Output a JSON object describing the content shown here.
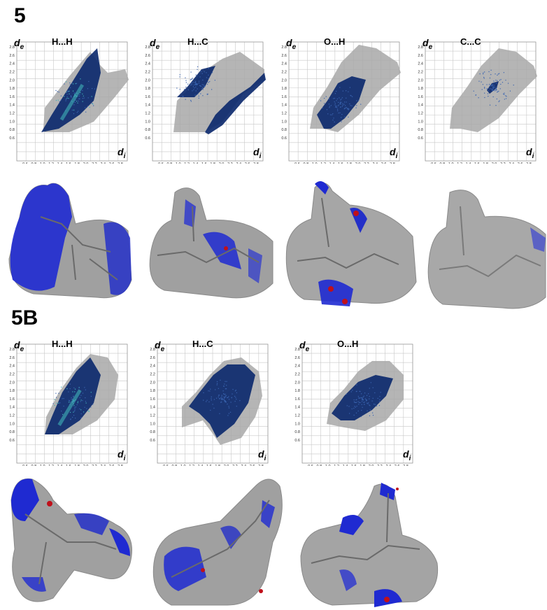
{
  "figure": {
    "sections": [
      {
        "label": "5",
        "plots": [
          {
            "title": "H...H",
            "shape": "hh5",
            "highlight": "blue"
          },
          {
            "title": "H...C",
            "shape": "hc5",
            "highlight": "blue"
          },
          {
            "title": "O...H",
            "shape": "oh5",
            "highlight": "blue"
          },
          {
            "title": "C...C",
            "shape": "cc5",
            "highlight": "small"
          }
        ]
      },
      {
        "label": "5B",
        "plots": [
          {
            "title": "H...H",
            "shape": "hh5b",
            "highlight": "blue"
          },
          {
            "title": "H...C",
            "shape": "hc5b",
            "highlight": "blue"
          },
          {
            "title": "O...H",
            "shape": "oh5b",
            "highlight": "blue"
          }
        ]
      }
    ],
    "axis": {
      "y_label_main": "d",
      "y_label_sub": "e",
      "x_label_main": "d",
      "x_label_sub": "i",
      "ticks": [
        "0.6",
        "0.8",
        "1.0",
        "1.2",
        "1.4",
        "1.6",
        "1.8",
        "2.0",
        "2.2",
        "2.4",
        "2.6",
        "2.8"
      ]
    },
    "colors": {
      "grey_points": "#a8a8a8",
      "blue_points": "#0d2a6e",
      "cyan_points": "#3fb2b8",
      "surface_grey": "#9c9c9c",
      "surface_blue": "#1f2ad1",
      "surface_red": "#c0101a",
      "grid": "#c8c8c8"
    }
  }
}
